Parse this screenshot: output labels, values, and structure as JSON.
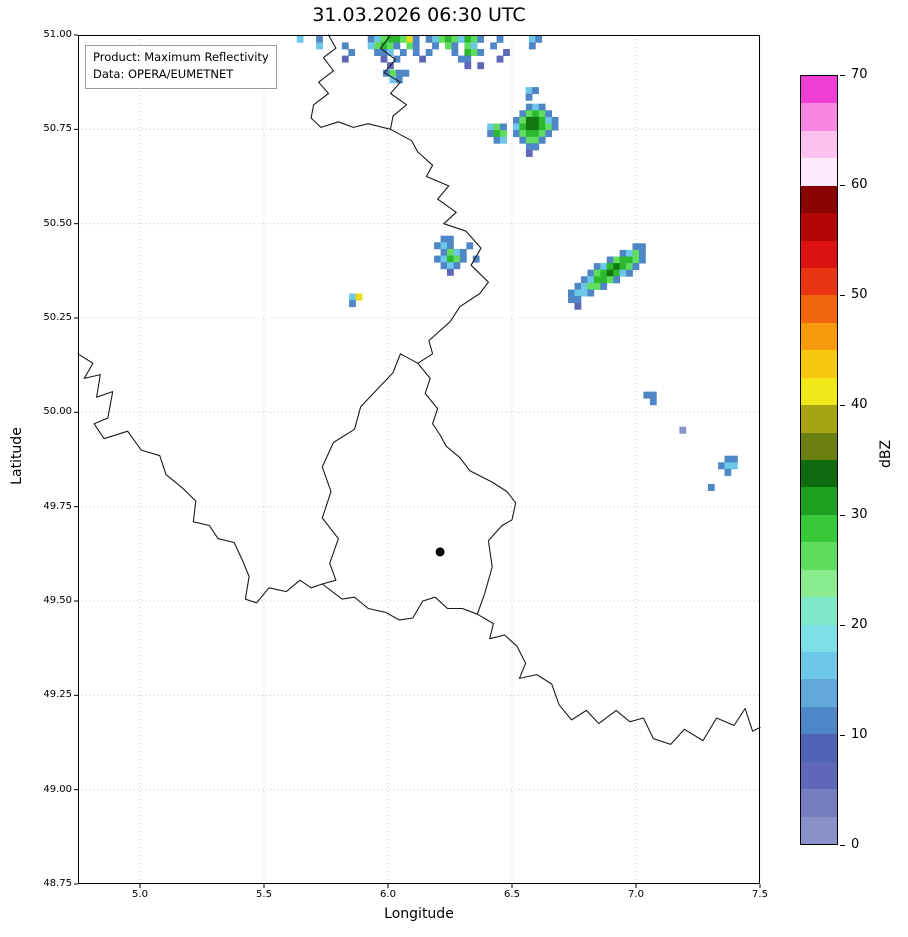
{
  "title": "31.03.2026 06:30 UTC",
  "info_box": {
    "line1": "Product: Maximum Reflectivity",
    "line2": "Data: OPERA/EUMETNET"
  },
  "chart_data": {
    "type": "heatmap",
    "title": "31.03.2026 06:30 UTC",
    "xlabel": "Longitude",
    "ylabel": "Latitude",
    "xlim": [
      4.75,
      7.5
    ],
    "ylim": [
      48.75,
      51.0
    ],
    "xticks": [
      5.0,
      5.5,
      6.0,
      6.5,
      7.0,
      7.5
    ],
    "xtick_labels": [
      "5.0",
      "5.5",
      "6.0",
      "6.5",
      "7.0",
      "7.5"
    ],
    "yticks": [
      48.75,
      49.0,
      49.25,
      49.5,
      49.75,
      50.0,
      50.25,
      50.5,
      50.75,
      51.0
    ],
    "ytick_labels": [
      "48.75",
      "49.00",
      "49.25",
      "49.50",
      "49.75",
      "50.00",
      "50.25",
      "50.50",
      "50.75",
      "51.00"
    ],
    "grid": "dotted",
    "grid_color": "#bbbbbb",
    "border_color": "#1a1a1a",
    "legend_position": "right-colorbar",
    "colorbar": {
      "label": "dBZ",
      "min": 0,
      "max": 70,
      "ticks": [
        0,
        10,
        20,
        30,
        40,
        50,
        60,
        70
      ],
      "bands": [
        {
          "from": 0,
          "color": "#8a91c9"
        },
        {
          "from": 2.5,
          "color": "#747ec1"
        },
        {
          "from": 5,
          "color": "#5f68b7"
        },
        {
          "from": 7.5,
          "color": "#4f63b4"
        },
        {
          "from": 10,
          "color": "#4e86c6"
        },
        {
          "from": 12.5,
          "color": "#60a9da"
        },
        {
          "from": 15,
          "color": "#6dc7e6"
        },
        {
          "from": 17.5,
          "color": "#7cdfe8"
        },
        {
          "from": 20,
          "color": "#7ee9c9"
        },
        {
          "from": 22.5,
          "color": "#8aeb8e"
        },
        {
          "from": 25,
          "color": "#5edd5e"
        },
        {
          "from": 27.5,
          "color": "#38c938"
        },
        {
          "from": 30,
          "color": "#1f9f1f"
        },
        {
          "from": 32.5,
          "color": "#0f6b0f"
        },
        {
          "from": 35,
          "color": "#6b7f10"
        },
        {
          "from": 37.5,
          "color": "#a8a312"
        },
        {
          "from": 40,
          "color": "#f0e818"
        },
        {
          "from": 42.5,
          "color": "#f7c80f"
        },
        {
          "from": 45,
          "color": "#f79a0e"
        },
        {
          "from": 47.5,
          "color": "#f1660b"
        },
        {
          "from": 50,
          "color": "#e93512"
        },
        {
          "from": 52.5,
          "color": "#dc1212"
        },
        {
          "from": 55,
          "color": "#b30606"
        },
        {
          "from": 57.5,
          "color": "#8a0303"
        },
        {
          "from": 60,
          "color": "#feeafa"
        },
        {
          "from": 62.5,
          "color": "#fdc1ef"
        },
        {
          "from": 65,
          "color": "#f785e2"
        },
        {
          "from": 67.5,
          "color": "#ee3ed3"
        }
      ]
    },
    "marker": {
      "lon": 6.21,
      "lat": 49.63,
      "color": "#000000"
    },
    "radar_cell": {
      "dlon": 0.026,
      "dlat": 0.0175
    },
    "radar_palette": {
      "1": {
        "dbz": 2,
        "color": "#8a91c9"
      },
      "2": {
        "dbz": 6,
        "color": "#5f68b7"
      },
      "3": {
        "dbz": 11,
        "color": "#4e86c6"
      },
      "4": {
        "dbz": 16,
        "color": "#6dc7e6"
      },
      "5": {
        "dbz": 21,
        "color": "#7ee9c9"
      },
      "6": {
        "dbz": 24,
        "color": "#5edd5e"
      },
      "7": {
        "dbz": 28,
        "color": "#2db92d"
      },
      "8": {
        "dbz": 33,
        "color": "#127812"
      },
      "9": {
        "dbz": 37,
        "color": "#8f9513"
      },
      "y": {
        "dbz": 41,
        "color": "#e8dc16"
      }
    },
    "radar_clusters": [
      {
        "name": "north-band",
        "lon0": 5.58,
        "lat0": 50.998,
        "rows": [
          "..4..3.......346776y3.346764763..3....43..",
          ".....4...3...46763.63..3.63.64..3.....3...",
          "..........3...334.3.3.3...3.763...2.......",
          ".........2.....2.3...2.....33....2........",
          "................2...........2.2..........."
        ]
      },
      {
        "name": "north-band-lower",
        "lon0": 5.98,
        "lat0": 50.908,
        "rows": [
          "3633",
          ".43."
        ]
      },
      {
        "name": "cell-eifel-north",
        "lon0": 6.4,
        "lat0": 50.818,
        "rows": [
          "......343...",
          ".....36763..",
          "....3688743.",
          "463.4788763.",
          "376.367763..",
          ".34..3663...",
          "......33....",
          "......2....."
        ]
      },
      {
        "name": "cell-eifel-north-dots",
        "lon0": 6.555,
        "lat0": 50.862,
        "rows": [
          "43",
          "3."
        ]
      },
      {
        "name": "cell-border-mid",
        "lon0": 6.16,
        "lat0": 50.468,
        "rows": [
          "..33......",
          ".343..3...",
          "..3643....",
          ".34763.3..",
          "..343.....",
          "...2......"
        ]
      },
      {
        "name": "cell-liege-small",
        "lon0": 5.843,
        "lat0": 50.315,
        "rows": [
          "4y",
          "3."
        ]
      },
      {
        "name": "cell-eifel-east-band",
        "lon0": 6.7,
        "lat0": 50.448,
        "rows": [
          "...........33.",
          ".........3463.",
          ".......367763.",
          ".....3478763..",
          "....3678743...",
          "...347763.....",
          "..34663.......",
          ".3443.........",
          ".33...........",
          "..2..........."
        ]
      },
      {
        "name": "speck-1",
        "lon0": 7.03,
        "lat0": 50.055,
        "rows": [
          "33",
          ".3"
        ]
      },
      {
        "name": "speck-2",
        "lon0": 7.305,
        "lat0": 49.885,
        "rows": [
          "..33",
          ".344",
          "..3."
        ]
      },
      {
        "name": "speck-3",
        "lon0": 7.29,
        "lat0": 49.81,
        "rows": [
          "3"
        ]
      },
      {
        "name": "speck-4",
        "lon0": 7.175,
        "lat0": 49.962,
        "rows": [
          "1"
        ]
      }
    ],
    "borders": [
      [
        [
          5.76,
          51.0
        ],
        [
          5.79,
          50.965
        ],
        [
          5.74,
          50.94
        ],
        [
          5.78,
          50.905
        ],
        [
          5.72,
          50.875
        ],
        [
          5.76,
          50.845
        ],
        [
          5.7,
          50.815
        ],
        [
          5.69,
          50.78
        ],
        [
          5.73,
          50.755
        ],
        [
          5.8,
          50.77
        ],
        [
          5.86,
          50.755
        ],
        [
          5.92,
          50.765
        ],
        [
          6.01,
          50.75
        ]
      ],
      [
        [
          6.01,
          51.0
        ],
        [
          5.97,
          50.965
        ],
        [
          6.03,
          50.935
        ],
        [
          5.985,
          50.9
        ],
        [
          6.05,
          50.875
        ],
        [
          6.01,
          50.845
        ],
        [
          6.075,
          50.815
        ],
        [
          6.02,
          50.785
        ],
        [
          6.01,
          50.75
        ]
      ],
      [
        [
          6.01,
          50.75
        ],
        [
          6.095,
          50.72
        ],
        [
          6.12,
          50.69
        ],
        [
          6.18,
          50.655
        ],
        [
          6.155,
          50.625
        ],
        [
          6.245,
          50.6
        ],
        [
          6.2,
          50.565
        ],
        [
          6.275,
          50.53
        ],
        [
          6.225,
          50.5
        ],
        [
          6.315,
          50.48
        ],
        [
          6.375,
          50.435
        ],
        [
          6.335,
          50.39
        ],
        [
          6.405,
          50.345
        ],
        [
          6.37,
          50.315
        ],
        [
          6.29,
          50.28
        ],
        [
          6.25,
          50.24
        ],
        [
          6.165,
          50.19
        ],
        [
          6.18,
          50.155
        ],
        [
          6.12,
          50.13
        ]
      ],
      [
        [
          6.12,
          50.13
        ],
        [
          6.05,
          50.155
        ],
        [
          6.02,
          50.105
        ],
        [
          5.955,
          50.06
        ],
        [
          5.89,
          50.015
        ],
        [
          5.865,
          49.955
        ],
        [
          5.78,
          49.92
        ],
        [
          5.735,
          49.855
        ],
        [
          5.77,
          49.79
        ],
        [
          5.735,
          49.72
        ],
        [
          5.8,
          49.665
        ],
        [
          5.765,
          49.6
        ],
        [
          5.79,
          49.555
        ],
        [
          5.735,
          49.545
        ],
        [
          5.815,
          49.505
        ],
        [
          5.865,
          49.51
        ],
        [
          5.92,
          49.48
        ],
        [
          5.99,
          49.47
        ],
        [
          6.045,
          49.45
        ],
        [
          6.1,
          49.455
        ],
        [
          6.14,
          49.5
        ],
        [
          6.19,
          49.51
        ],
        [
          6.24,
          49.48
        ],
        [
          6.3,
          49.48
        ],
        [
          6.36,
          49.465
        ],
        [
          6.39,
          49.52
        ],
        [
          6.42,
          49.59
        ],
        [
          6.405,
          49.66
        ],
        [
          6.46,
          49.7
        ],
        [
          6.5,
          49.715
        ],
        [
          6.515,
          49.76
        ],
        [
          6.48,
          49.79
        ],
        [
          6.42,
          49.815
        ],
        [
          6.33,
          49.845
        ],
        [
          6.29,
          49.88
        ],
        [
          6.235,
          49.91
        ],
        [
          6.21,
          49.94
        ],
        [
          6.18,
          49.97
        ],
        [
          6.2,
          50.01
        ],
        [
          6.15,
          50.05
        ],
        [
          6.17,
          50.09
        ],
        [
          6.12,
          50.13
        ]
      ],
      [
        [
          4.75,
          50.155
        ],
        [
          4.81,
          50.13
        ],
        [
          4.775,
          50.09
        ],
        [
          4.84,
          50.1
        ],
        [
          4.825,
          50.04
        ],
        [
          4.89,
          50.055
        ],
        [
          4.87,
          49.985
        ],
        [
          4.815,
          49.97
        ],
        [
          4.855,
          49.93
        ],
        [
          4.95,
          49.95
        ],
        [
          5.005,
          49.9
        ],
        [
          5.08,
          49.885
        ],
        [
          5.105,
          49.835
        ],
        [
          5.17,
          49.8
        ],
        [
          5.225,
          49.765
        ],
        [
          5.215,
          49.71
        ],
        [
          5.28,
          49.7
        ],
        [
          5.315,
          49.665
        ],
        [
          5.38,
          49.655
        ],
        [
          5.415,
          49.605
        ],
        [
          5.44,
          49.565
        ],
        [
          5.425,
          49.505
        ],
        [
          5.47,
          49.495
        ],
        [
          5.52,
          49.535
        ],
        [
          5.59,
          49.525
        ],
        [
          5.645,
          49.555
        ],
        [
          5.69,
          49.535
        ],
        [
          5.735,
          49.545
        ]
      ],
      [
        [
          6.36,
          49.465
        ],
        [
          6.425,
          49.44
        ],
        [
          6.41,
          49.4
        ],
        [
          6.47,
          49.41
        ],
        [
          6.52,
          49.38
        ],
        [
          6.555,
          49.335
        ],
        [
          6.53,
          49.295
        ],
        [
          6.6,
          49.305
        ],
        [
          6.66,
          49.28
        ],
        [
          6.69,
          49.225
        ],
        [
          6.74,
          49.185
        ],
        [
          6.8,
          49.21
        ],
        [
          6.85,
          49.175
        ],
        [
          6.92,
          49.21
        ],
        [
          6.975,
          49.18
        ],
        [
          7.03,
          49.19
        ],
        [
          7.07,
          49.135
        ],
        [
          7.14,
          49.12
        ],
        [
          7.195,
          49.16
        ],
        [
          7.27,
          49.13
        ],
        [
          7.325,
          49.19
        ],
        [
          7.395,
          49.17
        ],
        [
          7.44,
          49.215
        ],
        [
          7.47,
          49.155
        ],
        [
          7.5,
          49.165
        ]
      ]
    ]
  }
}
